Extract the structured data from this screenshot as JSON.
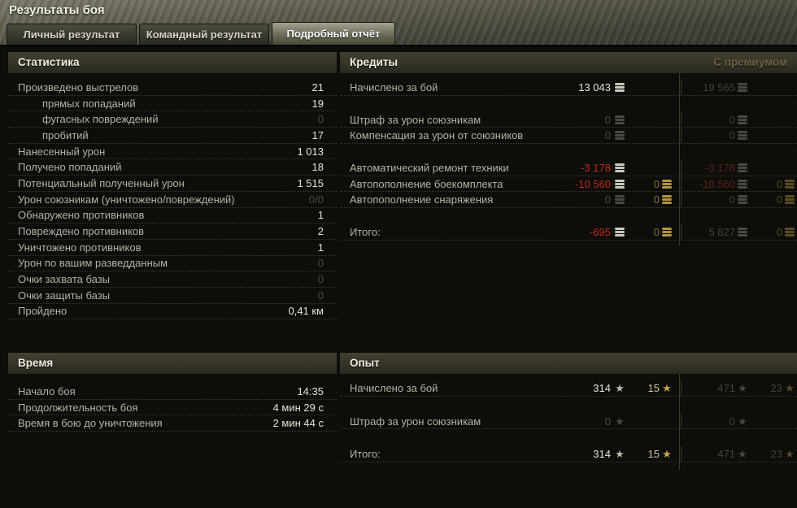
{
  "window": {
    "title": "Результаты боя"
  },
  "tabs": [
    {
      "label": "Личный результат",
      "active": false
    },
    {
      "label": "Командный результат",
      "active": false
    },
    {
      "label": "Подробный отчёт",
      "active": true
    }
  ],
  "colors": {
    "negative": "#c02a19",
    "gold": "#c7a24a",
    "premium_label": "#6e6245",
    "panel_header_bg": "#3a382a",
    "value_normal": "#e6e3d7",
    "value_muted": "#4e4b41"
  },
  "statistics": {
    "title": "Статистика",
    "rows": [
      {
        "label": "Произведено выстрелов",
        "value": "21",
        "dim": false,
        "indent": false
      },
      {
        "label": "прямых попаданий",
        "value": "19",
        "dim": false,
        "indent": true
      },
      {
        "label": "фугасных повреждений",
        "value": "0",
        "dim": true,
        "indent": true
      },
      {
        "label": "пробитий",
        "value": "17",
        "dim": false,
        "indent": true
      },
      {
        "label": "Нанесенный урон",
        "value": "1 013",
        "dim": false,
        "indent": false
      },
      {
        "label": "Получено попаданий",
        "value": "18",
        "dim": false,
        "indent": false
      },
      {
        "label": "Потенциальный полученный урон",
        "value": "1 515",
        "dim": false,
        "indent": false
      },
      {
        "label": "Урон союзникам (уничтожено/повреждений)",
        "value": "0/0",
        "dim": true,
        "indent": false
      },
      {
        "label": "Обнаружено противников",
        "value": "1",
        "dim": false,
        "indent": false
      },
      {
        "label": "Повреждено противников",
        "value": "2",
        "dim": false,
        "indent": false
      },
      {
        "label": "Уничтожено противников",
        "value": "1",
        "dim": false,
        "indent": false
      },
      {
        "label": "Урон по вашим разведданным",
        "value": "0",
        "dim": true,
        "indent": false
      },
      {
        "label": "Очки захвата базы",
        "value": "0",
        "dim": true,
        "indent": false
      },
      {
        "label": "Очки защиты базы",
        "value": "0",
        "dim": true,
        "indent": false
      },
      {
        "label": "Пройдено",
        "value": "0,41 км",
        "dim": false,
        "indent": false
      }
    ]
  },
  "credits": {
    "title": "Кредиты",
    "premium_label": "С премиумом",
    "icon_kind": "coin",
    "groups": [
      [
        {
          "label": "Начислено за бой",
          "c1": {
            "v": "13 043",
            "tone": "normal",
            "icon": "coin-silver"
          },
          "c3": {
            "v": "19 565",
            "tone": "pmuted",
            "icon": "coin-silver-dim"
          }
        }
      ],
      [
        {
          "label": "Штраф за урон союзникам",
          "c1": {
            "v": "0",
            "tone": "muted",
            "icon": "coin-silver-dim"
          },
          "c3": {
            "v": "0",
            "tone": "pmuted",
            "icon": "coin-silver-dim"
          }
        },
        {
          "label": "Компенсация за урон от союзников",
          "c1": {
            "v": "0",
            "tone": "muted",
            "icon": "coin-silver-dim"
          },
          "c3": {
            "v": "0",
            "tone": "pmuted",
            "icon": "coin-silver-dim"
          }
        }
      ],
      [
        {
          "label": "Автоматический ремонт техники",
          "c1": {
            "v": "-3 178",
            "tone": "negative",
            "icon": "coin-silver"
          },
          "c3": {
            "v": "-3 178",
            "tone": "pnegative",
            "icon": "coin-silver-dim"
          }
        },
        {
          "label": "Автопополнение боекомплекта",
          "c1": {
            "v": "-10 560",
            "tone": "negative",
            "icon": "coin-silver"
          },
          "c2": {
            "v": "0",
            "tone": "gold",
            "icon": "coin-gold"
          },
          "c3": {
            "v": "-10 560",
            "tone": "pnegative",
            "icon": "coin-silver-dim"
          },
          "c4": {
            "v": "0",
            "tone": "pgold",
            "icon": "coin-gold-dim"
          }
        },
        {
          "label": "Автопополнение снаряжения",
          "c1": {
            "v": "0",
            "tone": "muted",
            "icon": "coin-silver-dim"
          },
          "c2": {
            "v": "0",
            "tone": "gold",
            "icon": "coin-gold"
          },
          "c3": {
            "v": "0",
            "tone": "pmuted",
            "icon": "coin-silver-dim"
          },
          "c4": {
            "v": "0",
            "tone": "pgold",
            "icon": "coin-gold-dim"
          }
        }
      ],
      [
        {
          "label": "Итого:",
          "c1": {
            "v": "-695",
            "tone": "negative",
            "icon": "coin-silver"
          },
          "c2": {
            "v": "0",
            "tone": "gold",
            "icon": "coin-gold"
          },
          "c3": {
            "v": "5 827",
            "tone": "pmuted",
            "icon": "coin-silver-dim"
          },
          "c4": {
            "v": "0",
            "tone": "pgold",
            "icon": "coin-gold-dim"
          }
        }
      ]
    ]
  },
  "time": {
    "title": "Время",
    "rows": [
      {
        "label": "Начало боя",
        "value": "14:35"
      },
      {
        "label": "Продолжительность боя",
        "value": "4 мин 29 с"
      },
      {
        "label": "Время в бою до уничтожения",
        "value": "2 мин 44 с"
      }
    ]
  },
  "experience": {
    "title": "Опыт",
    "icon_kind": "star",
    "groups": [
      [
        {
          "label": "Начислено за бой",
          "c1": {
            "v": "314",
            "tone": "normal",
            "icon": "star-silver"
          },
          "c2": {
            "v": "15",
            "tone": "beige",
            "icon": "star-gold"
          },
          "c3": {
            "v": "471",
            "tone": "pmuted",
            "icon": "star-silver-dim"
          },
          "c4": {
            "v": "23",
            "tone": "pmuted",
            "icon": "star-gold-dim"
          }
        }
      ],
      [
        {
          "label": "Штраф за урон союзникам",
          "c1": {
            "v": "0",
            "tone": "muted",
            "icon": "star-silver-dim"
          },
          "c3": {
            "v": "0",
            "tone": "pmuted",
            "icon": "star-silver-dim"
          }
        }
      ],
      [
        {
          "label": "Итого:",
          "c1": {
            "v": "314",
            "tone": "normal",
            "icon": "star-silver"
          },
          "c2": {
            "v": "15",
            "tone": "beige",
            "icon": "star-gold"
          },
          "c3": {
            "v": "471",
            "tone": "pmuted",
            "icon": "star-silver-dim"
          },
          "c4": {
            "v": "23",
            "tone": "pmuted",
            "icon": "star-gold-dim"
          }
        }
      ]
    ]
  }
}
